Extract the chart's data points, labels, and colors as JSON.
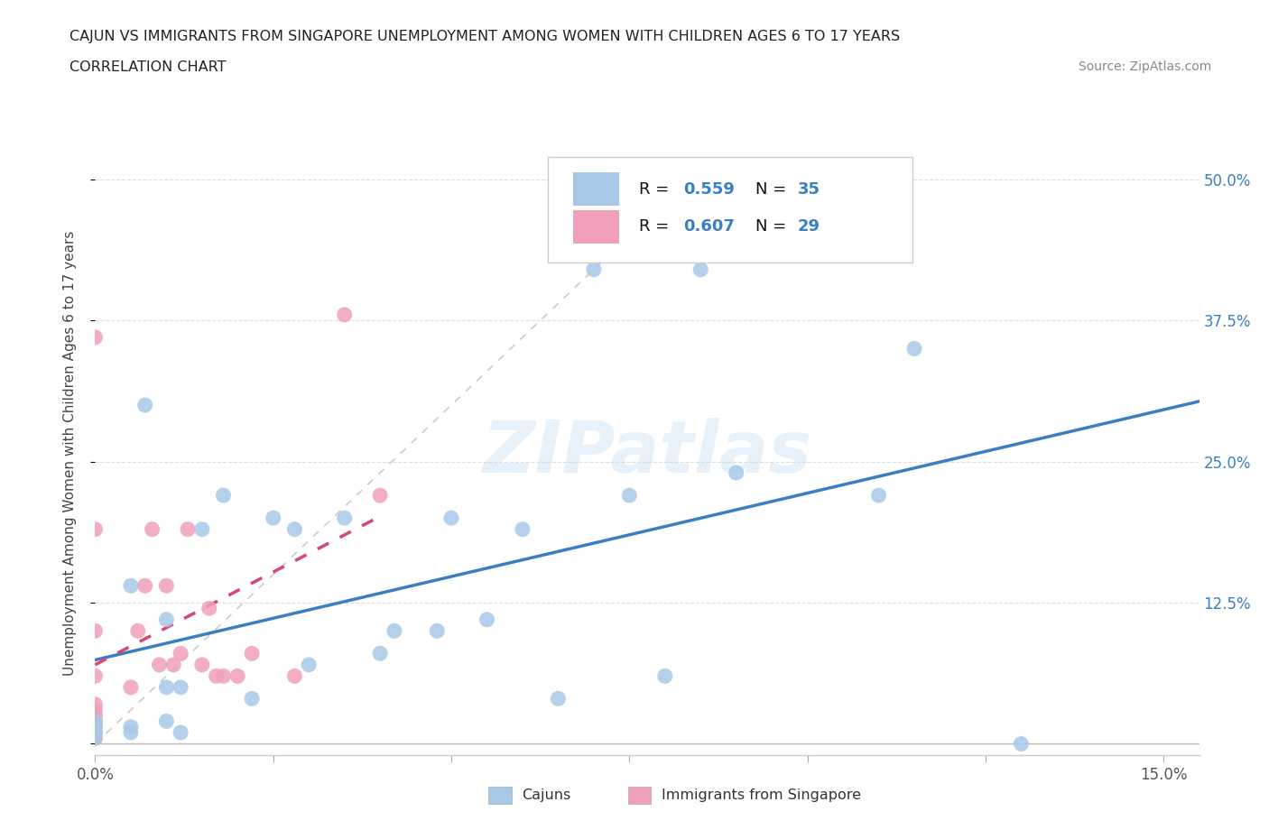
{
  "title_line1": "CAJUN VS IMMIGRANTS FROM SINGAPORE UNEMPLOYMENT AMONG WOMEN WITH CHILDREN AGES 6 TO 17 YEARS",
  "title_line2": "CORRELATION CHART",
  "source_text": "Source: ZipAtlas.com",
  "ylabel": "Unemployment Among Women with Children Ages 6 to 17 years",
  "xlim": [
    0.0,
    0.155
  ],
  "ylim": [
    -0.01,
    0.525
  ],
  "ytick_positions": [
    0.0,
    0.125,
    0.25,
    0.375,
    0.5
  ],
  "ytick_labels": [
    "",
    "12.5%",
    "25.0%",
    "37.5%",
    "50.0%"
  ],
  "xtick_positions": [
    0.0,
    0.025,
    0.05,
    0.075,
    0.1,
    0.125,
    0.15
  ],
  "xtick_labels": [
    "0.0%",
    "",
    "",
    "",
    "",
    "",
    "15.0%"
  ],
  "cajun_R": 0.559,
  "cajun_N": 35,
  "singapore_R": 0.607,
  "singapore_N": 29,
  "cajun_scatter_color": "#a8c8e8",
  "singapore_scatter_color": "#f0a0b8",
  "trend_blue": "#3a7fc1",
  "trend_pink": "#d94870",
  "watermark": "ZIPatlas",
  "cajun_x": [
    0.0,
    0.0,
    0.0,
    0.0,
    0.005,
    0.005,
    0.005,
    0.007,
    0.01,
    0.01,
    0.01,
    0.012,
    0.012,
    0.015,
    0.018,
    0.022,
    0.025,
    0.028,
    0.03,
    0.035,
    0.04,
    0.042,
    0.048,
    0.05,
    0.055,
    0.06,
    0.065,
    0.07,
    0.075,
    0.08,
    0.085,
    0.09,
    0.11,
    0.115,
    0.13
  ],
  "cajun_y": [
    0.005,
    0.01,
    0.015,
    0.02,
    0.01,
    0.015,
    0.14,
    0.3,
    0.02,
    0.05,
    0.11,
    0.01,
    0.05,
    0.19,
    0.22,
    0.04,
    0.2,
    0.19,
    0.07,
    0.2,
    0.08,
    0.1,
    0.1,
    0.2,
    0.11,
    0.19,
    0.04,
    0.42,
    0.22,
    0.06,
    0.42,
    0.24,
    0.22,
    0.35,
    0.0
  ],
  "singapore_x": [
    0.0,
    0.0,
    0.0,
    0.0,
    0.0,
    0.0,
    0.0,
    0.0,
    0.0,
    0.0,
    0.0,
    0.005,
    0.006,
    0.007,
    0.008,
    0.009,
    0.01,
    0.011,
    0.012,
    0.013,
    0.015,
    0.016,
    0.017,
    0.018,
    0.02,
    0.022,
    0.028,
    0.035,
    0.04
  ],
  "singapore_y": [
    0.005,
    0.01,
    0.015,
    0.02,
    0.025,
    0.03,
    0.035,
    0.06,
    0.1,
    0.19,
    0.36,
    0.05,
    0.1,
    0.14,
    0.19,
    0.07,
    0.14,
    0.07,
    0.08,
    0.19,
    0.07,
    0.12,
    0.06,
    0.06,
    0.06,
    0.08,
    0.06,
    0.38,
    0.22
  ]
}
